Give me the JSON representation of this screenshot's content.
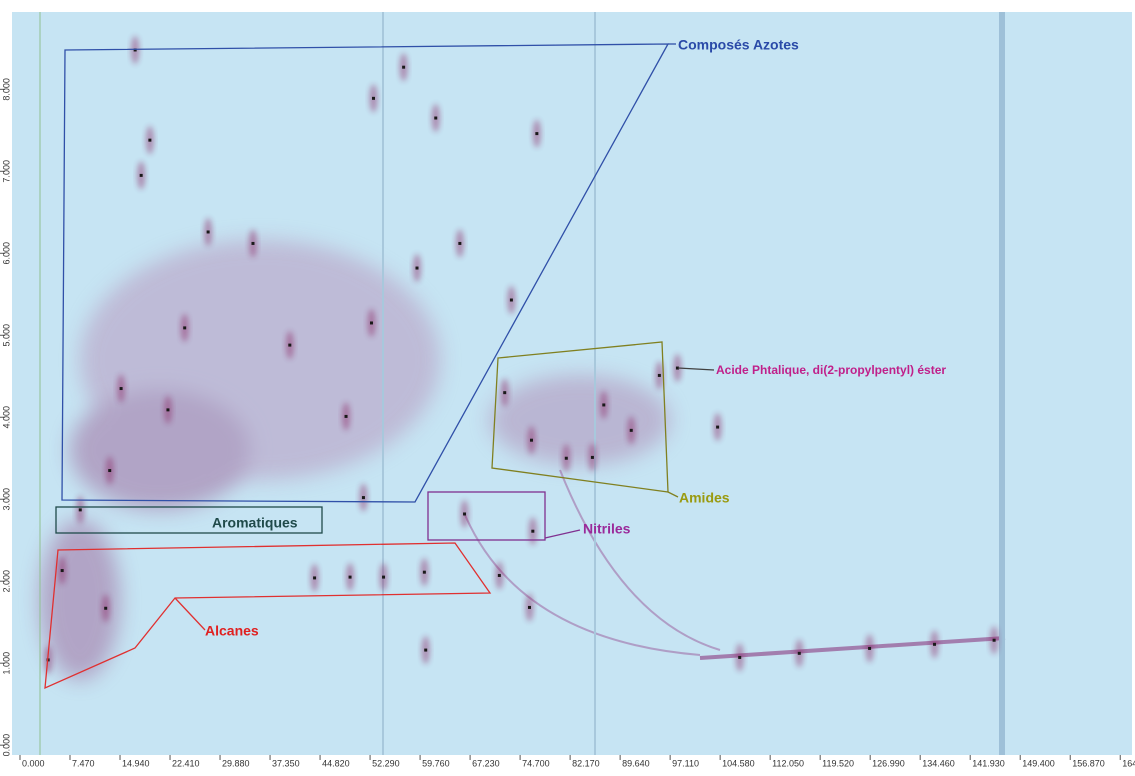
{
  "chart_data": {
    "type": "scatter",
    "xlim": [
      0,
      165.5
    ],
    "ylim": [
      -0.12,
      8.87
    ],
    "xticks": [
      {
        "value": 0,
        "label": "0.000"
      },
      {
        "value": 7.47,
        "label": "7.470"
      },
      {
        "value": 14.94,
        "label": "14.940"
      },
      {
        "value": 22.41,
        "label": "22.410"
      },
      {
        "value": 29.88,
        "label": "29.880"
      },
      {
        "value": 37.35,
        "label": "37.350"
      },
      {
        "value": 44.82,
        "label": "44.820"
      },
      {
        "value": 52.29,
        "label": "52.290"
      },
      {
        "value": 59.76,
        "label": "59.760"
      },
      {
        "value": 67.23,
        "label": "67.230"
      },
      {
        "value": 74.7,
        "label": "74.700"
      },
      {
        "value": 82.17,
        "label": "82.170"
      },
      {
        "value": 89.64,
        "label": "89.640"
      },
      {
        "value": 97.11,
        "label": "97.110"
      },
      {
        "value": 104.58,
        "label": "104.580"
      },
      {
        "value": 112.05,
        "label": "112.050"
      },
      {
        "value": 119.52,
        "label": "119.520"
      },
      {
        "value": 126.99,
        "label": "126.990"
      },
      {
        "value": 134.46,
        "label": "134.460"
      },
      {
        "value": 141.93,
        "label": "141.930"
      },
      {
        "value": 149.4,
        "label": "149.400"
      },
      {
        "value": 156.87,
        "label": "156.870"
      },
      {
        "value": 164.34,
        "label": "164."
      }
    ],
    "yticks": [
      {
        "value": 0,
        "label": "0.000"
      },
      {
        "value": 1,
        "label": "1.000"
      },
      {
        "value": 2,
        "label": "2.000"
      },
      {
        "value": 3,
        "label": "3.000"
      },
      {
        "value": 4,
        "label": "4.000"
      },
      {
        "value": 5,
        "label": "5.000"
      },
      {
        "value": 6,
        "label": "6.000"
      },
      {
        "value": 7,
        "label": "7.000"
      },
      {
        "value": 8,
        "label": "8.000"
      }
    ],
    "color": "#1a1a1a",
    "x": [
      17.2,
      57.3,
      52.8,
      62.1,
      77.2,
      19.4,
      18.1,
      34.8,
      28.1,
      65.7,
      59.3,
      73.4,
      52.5,
      24.6,
      40.3,
      15.1,
      22.1,
      48.7,
      13.4,
      51.3,
      9.0,
      66.4,
      76.6,
      6.3,
      44.0,
      49.3,
      54.3,
      60.4,
      71.6,
      76.1,
      12.8,
      4.2,
      60.6,
      72.4,
      76.4,
      81.6,
      85.5,
      87.2,
      91.3,
      95.5,
      98.2,
      104.2,
      107.5,
      116.4,
      126.9,
      136.6,
      145.5
    ],
    "values": [
      8.48,
      8.27,
      7.89,
      7.65,
      7.46,
      7.38,
      6.95,
      6.12,
      6.26,
      6.12,
      5.82,
      5.43,
      5.15,
      5.09,
      4.88,
      4.35,
      4.09,
      4.01,
      3.35,
      3.02,
      2.87,
      2.82,
      2.61,
      2.13,
      2.04,
      2.05,
      2.05,
      2.11,
      2.07,
      1.68,
      1.67,
      1.04,
      1.16,
      4.3,
      3.72,
      3.5,
      3.51,
      4.15,
      3.84,
      4.51,
      4.6,
      3.88,
      1.07,
      1.12,
      1.18,
      1.23,
      1.28
    ],
    "annotations": [
      {
        "text": "Composés Azotes",
        "color": "#2a4aa8"
      },
      {
        "text": "Acide Phtalique, di(2-propylpentyl) éster",
        "color": "#c0208a"
      },
      {
        "text": "Amides",
        "color": "#9a9a10"
      },
      {
        "text": "Nitriles",
        "color": "#9a2a9a"
      },
      {
        "text": "Aromatiques",
        "color": "#1f4a4a"
      },
      {
        "text": "Alcanes",
        "color": "#e02020"
      }
    ]
  }
}
